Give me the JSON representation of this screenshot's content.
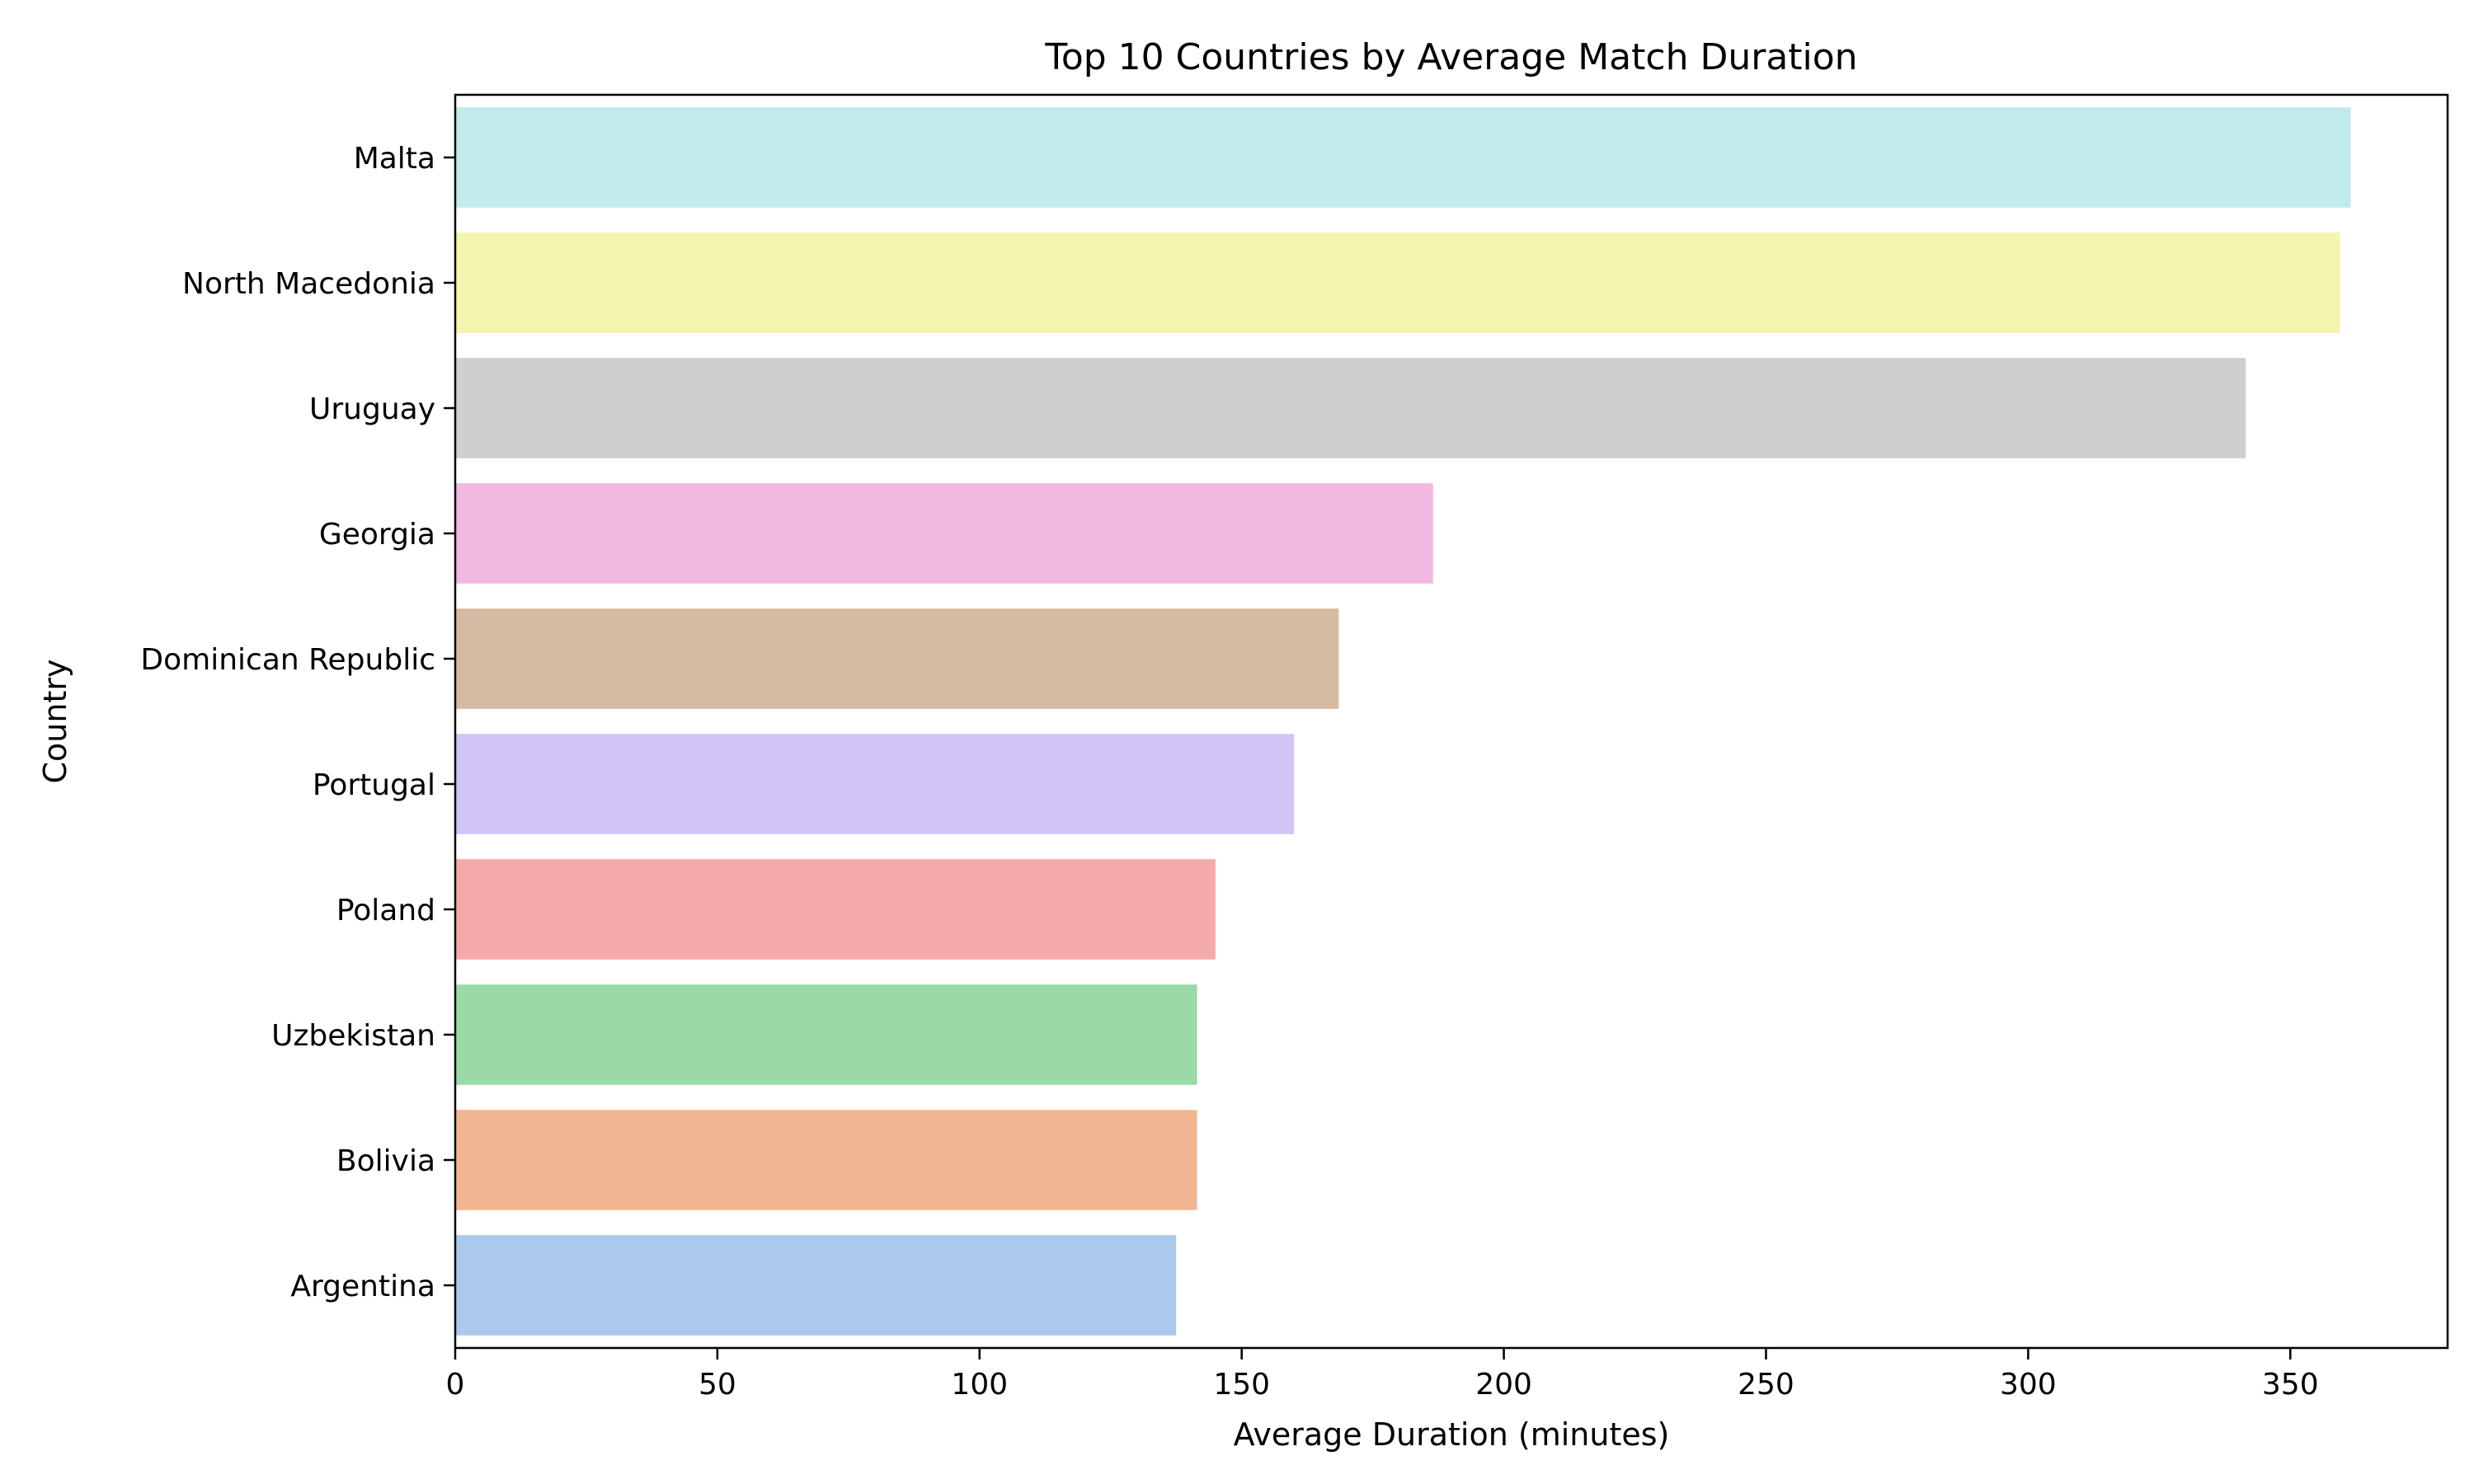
{
  "chart_data": {
    "type": "bar",
    "orientation": "horizontal",
    "title": "Top 10 Countries by Average Match Duration",
    "xlabel": "Average Duration (minutes)",
    "ylabel": "Country",
    "xlim": [
      0,
      380
    ],
    "xticks": [
      0,
      50,
      100,
      150,
      200,
      250,
      300,
      350
    ],
    "categories": [
      "Malta",
      "North Macedonia",
      "Uruguay",
      "Georgia",
      "Dominican Republic",
      "Portugal",
      "Poland",
      "Uzbekistan",
      "Bolivia",
      "Argentina"
    ],
    "values": [
      361.5,
      359.5,
      341.5,
      186.5,
      168.5,
      160.0,
      145.0,
      141.5,
      141.5,
      137.5
    ],
    "colors": [
      "#c1ebea",
      "#f4f4b1",
      "#cfcfcf",
      "#f1b8e1",
      "#d5bba2",
      "#d1c5f7",
      "#f3aaa8",
      "#99daa7",
      "#f1b691",
      "#abc9ed"
    ],
    "grid": false,
    "legend": "none"
  }
}
